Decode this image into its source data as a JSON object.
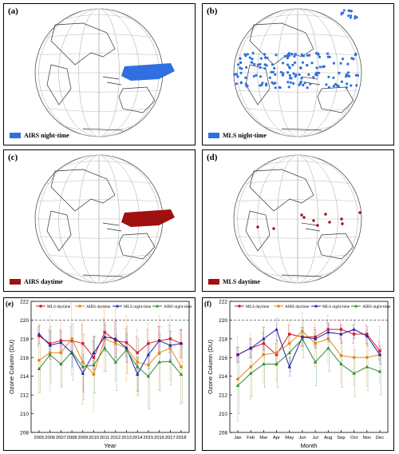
{
  "maps": [
    {
      "label": "(a)",
      "legend": "AIRS night-time",
      "color": "#2f6fe0",
      "pattern": "australia-band"
    },
    {
      "label": "(b)",
      "legend": "MLS night-time",
      "color": "#2f6fe0",
      "pattern": "scattered-rows"
    },
    {
      "label": "(c)",
      "legend": "AIRS daytime",
      "color": "#a01010",
      "pattern": "australia-band"
    },
    {
      "label": "(d)",
      "legend": "MLS daytime",
      "color": "#a01010",
      "pattern": "sparse-dots"
    }
  ],
  "chart_data": [
    {
      "label": "(e)",
      "type": "line",
      "xlabel": "Year",
      "ylabel": "Ozone Column (DU)",
      "ylim": [
        208,
        222
      ],
      "yticks": [
        208,
        210,
        212,
        214,
        216,
        218,
        220,
        222
      ],
      "reference_line": 220,
      "legend_placement": "top",
      "categories": [
        "2005",
        "2006",
        "2007",
        "2008",
        "2009",
        "2010",
        "2011",
        "2012",
        "2013",
        "2014",
        "2015",
        "2016",
        "2017",
        "2018"
      ],
      "series": [
        {
          "name": "MLS daytime",
          "color": "#d21f2a",
          "marker": "circle",
          "values": [
            218.3,
            217.5,
            217.8,
            217.8,
            217.5,
            216.0,
            218.7,
            217.8,
            217.6,
            216.5,
            217.5,
            217.8,
            218.0,
            217.5
          ],
          "errors": [
            1.0,
            1.5,
            1.2,
            1.5,
            2.0,
            1.8,
            1.5,
            2.0,
            1.5,
            1.8,
            1.5,
            1.5,
            1.5,
            1.5
          ]
        },
        {
          "name": "AIRS daytime",
          "color": "#e08a1a",
          "marker": "circle",
          "values": [
            215.7,
            216.5,
            216.5,
            218.0,
            215.5,
            214.2,
            218.0,
            217.5,
            217.0,
            215.5,
            215.2,
            216.5,
            217.0,
            215.0
          ],
          "errors": [
            3.5,
            4.0,
            3.5,
            3.8,
            4.5,
            4.0,
            3.5,
            4.0,
            3.5,
            3.5,
            4.5,
            4.0,
            3.5,
            4.0
          ]
        },
        {
          "name": "MLS night-time",
          "color": "#1f1fb0",
          "marker": "triangle",
          "values": [
            218.5,
            217.3,
            217.6,
            216.5,
            214.3,
            216.5,
            218.2,
            218.0,
            217.0,
            214.2,
            216.3,
            217.8,
            217.3,
            217.5
          ],
          "errors": [
            1.0,
            1.5,
            1.2,
            1.5,
            2.0,
            1.8,
            1.5,
            2.0,
            1.5,
            1.8,
            1.5,
            1.5,
            1.5,
            1.5
          ]
        },
        {
          "name": "AIRS night-time",
          "color": "#2f8a2f",
          "marker": "triangle",
          "values": [
            214.8,
            216.3,
            215.3,
            216.6,
            215.0,
            215.2,
            217.0,
            215.5,
            216.8,
            215.0,
            214.0,
            215.5,
            215.6,
            214.2
          ],
          "errors": [
            2.5,
            3.0,
            2.5,
            3.0,
            3.5,
            3.0,
            2.5,
            3.0,
            2.5,
            3.0,
            3.5,
            3.0,
            2.5,
            3.0
          ]
        }
      ]
    },
    {
      "label": "(f)",
      "type": "line",
      "xlabel": "Month",
      "ylabel": "Ozone Column (DU)",
      "ylim": [
        208,
        222
      ],
      "yticks": [
        208,
        210,
        212,
        214,
        216,
        218,
        220,
        222
      ],
      "reference_line": 220,
      "legend_placement": "top",
      "categories": [
        "Jan",
        "Feb",
        "Mar",
        "Apr",
        "May",
        "Jun",
        "Jul",
        "Aug",
        "Sep",
        "Oct",
        "Nov",
        "Dec"
      ],
      "series": [
        {
          "name": "MLS daytime",
          "color": "#d21f2a",
          "marker": "circle",
          "values": [
            216.3,
            217.0,
            217.5,
            216.3,
            218.5,
            218.2,
            218.2,
            219.0,
            219.0,
            218.5,
            218.5,
            216.7
          ],
          "errors": [
            0.8,
            1.0,
            1.2,
            1.2,
            1.0,
            1.0,
            1.0,
            1.0,
            1.0,
            1.0,
            1.0,
            1.0
          ]
        },
        {
          "name": "AIRS daytime",
          "color": "#e08a1a",
          "marker": "circle",
          "values": [
            213.7,
            215.0,
            216.3,
            216.5,
            217.5,
            218.8,
            217.5,
            218.0,
            216.2,
            216.0,
            216.0,
            216.3
          ],
          "errors": [
            4.5,
            3.5,
            3.0,
            3.0,
            2.5,
            2.0,
            2.5,
            2.5,
            3.0,
            3.0,
            3.0,
            3.0
          ]
        },
        {
          "name": "MLS night-time",
          "color": "#1f1fb0",
          "marker": "triangle",
          "values": [
            216.3,
            217.0,
            218.0,
            219.0,
            215.0,
            218.2,
            218.0,
            218.7,
            218.5,
            219.0,
            218.3,
            216.3
          ],
          "errors": [
            0.8,
            1.0,
            1.2,
            1.2,
            1.0,
            1.0,
            1.0,
            1.0,
            1.0,
            1.0,
            1.0,
            1.0
          ]
        },
        {
          "name": "AIRS night-time",
          "color": "#2f8a2f",
          "marker": "triangle",
          "values": [
            213.0,
            214.3,
            215.3,
            215.3,
            216.5,
            218.0,
            215.5,
            217.0,
            215.3,
            214.3,
            215.0,
            214.5
          ],
          "errors": [
            3.0,
            2.5,
            2.5,
            2.5,
            2.0,
            2.0,
            2.5,
            2.5,
            2.5,
            2.5,
            2.5,
            2.5
          ]
        }
      ]
    }
  ]
}
